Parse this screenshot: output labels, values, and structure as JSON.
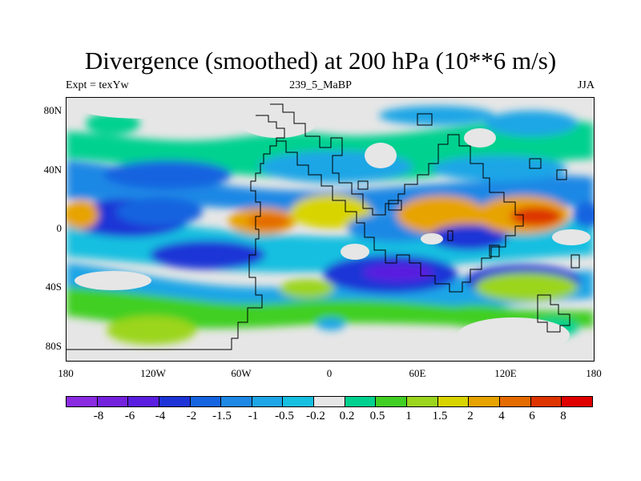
{
  "header": {
    "title": "Divergence (smoothed) at 200 hPa (10**6 m/s)",
    "left": "Expt = texYw",
    "center": "239_5_MaBP",
    "right": "JJA"
  },
  "axes": {
    "lat_ticks": [
      "80N",
      "40N",
      "0",
      "40S",
      "80S"
    ],
    "lon_ticks": [
      "180",
      "120W",
      "60W",
      "0",
      "60E",
      "120E",
      "180"
    ]
  },
  "colorbar": {
    "labels": [
      "-8",
      "-6",
      "-4",
      "-2",
      "-1.5",
      "-1",
      "-0.5",
      "-0.2",
      "0.2",
      "0.5",
      "1",
      "1.5",
      "2",
      "4",
      "6",
      "8"
    ],
    "colors": [
      "#8a2be2",
      "#7422dd",
      "#5a1ee0",
      "#1f34d6",
      "#1664e0",
      "#1e88e5",
      "#1ea6e6",
      "#17bfe0",
      "#e6e6e6",
      "#00d18f",
      "#41cf23",
      "#9bd51d",
      "#d8d400",
      "#e7a300",
      "#e46b00",
      "#de3400",
      "#e00000"
    ]
  },
  "map_fill_colors": {
    "background": "#e6e6e6",
    "coastline": "#000000"
  }
}
